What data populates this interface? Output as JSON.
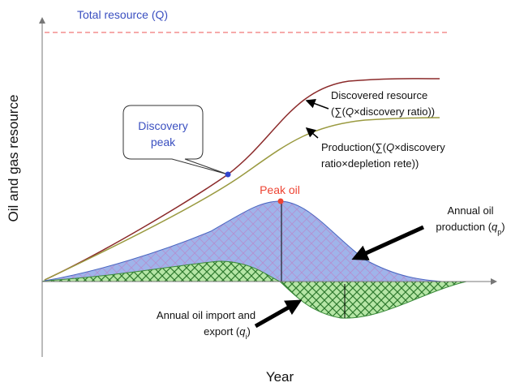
{
  "title": "Total resource (Q)",
  "y_axis_label": "Oil and gas resource",
  "x_axis_label": "Year",
  "callout": [
    "Discovery",
    "peak"
  ],
  "peak_label": "Peak oil",
  "labels": {
    "discovered": [
      [
        {
          "t": "Discovered resource"
        }
      ],
      [
        {
          "t": "(∑("
        },
        {
          "t": "Q",
          "style": "italic"
        },
        {
          "t": "×discovery ratio))"
        }
      ]
    ],
    "production": [
      [
        {
          "t": "Production(∑("
        },
        {
          "t": "Q",
          "style": "italic"
        },
        {
          "t": "×discovery"
        }
      ],
      [
        {
          "t": "ratio×depletion rete))"
        }
      ]
    ],
    "annual_production": [
      [
        {
          "t": "Annual oil"
        }
      ],
      [
        {
          "t": "production ("
        },
        {
          "t": "q",
          "style": "italic"
        },
        {
          "t": "p",
          "style": "sub"
        },
        {
          "t": ")"
        }
      ]
    ],
    "import_export": [
      [
        {
          "t": "Annual oil import and"
        }
      ],
      [
        {
          "t": "export ("
        },
        {
          "t": "q",
          "style": "italic"
        },
        {
          "t": "i",
          "style": "sub"
        },
        {
          "t": ")"
        }
      ]
    ]
  }
}
